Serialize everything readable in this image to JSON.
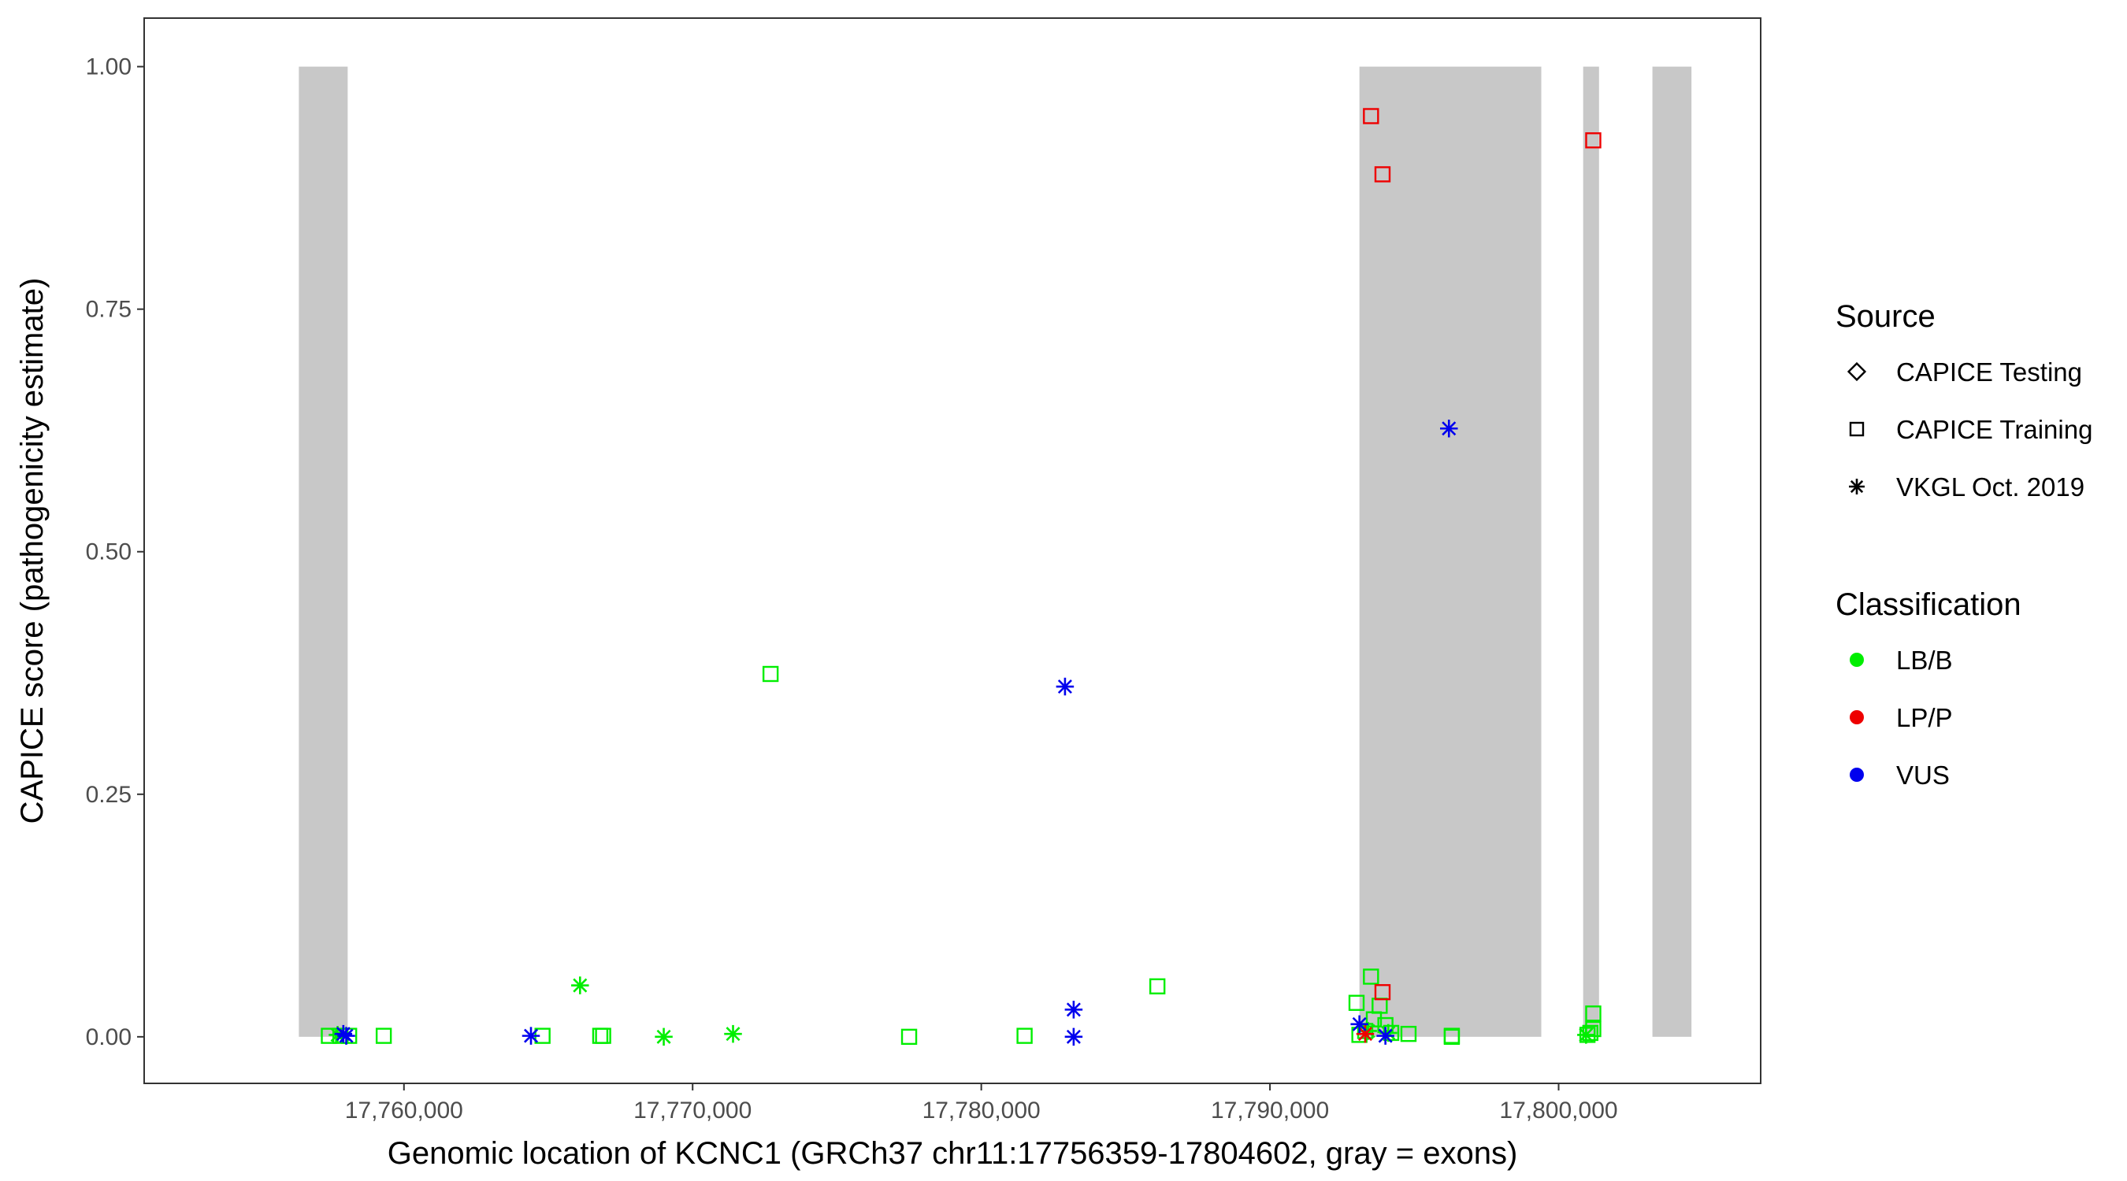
{
  "chart_data": {
    "type": "scatter",
    "title": "",
    "xlabel": "Genomic location of KCNC1 (GRCh37 chr11:17756359-17804602, gray = exons)",
    "ylabel": "CAPICE score (pathogenicity estimate)",
    "xlim": [
      17751000,
      17807000
    ],
    "ylim": [
      -0.048,
      1.05
    ],
    "x_ticks": [
      17760000,
      17770000,
      17780000,
      17790000,
      17800000
    ],
    "x_tick_labels": [
      "17,760,000",
      "17,770,000",
      "17,780,000",
      "17,790,000",
      "17,800,000"
    ],
    "y_ticks": [
      0,
      0.25,
      0.5,
      0.75,
      1.0
    ],
    "y_tick_labels": [
      "0.00",
      "0.25",
      "0.50",
      "0.75",
      "1.00"
    ],
    "grid": false,
    "exon_color": "#c8c8c8",
    "exons": [
      {
        "start": 17756359,
        "end": 17758050
      },
      {
        "start": 17793100,
        "end": 17799400
      },
      {
        "start": 17800850,
        "end": 17801400
      },
      {
        "start": 17803250,
        "end": 17804602
      }
    ],
    "colors": {
      "LB/B": "#00ee00",
      "LP/P": "#ee0000",
      "VUS": "#0000ee"
    },
    "points": [
      {
        "x": 17757400,
        "y": 0.001,
        "source": "CAPICE Training",
        "cls": "LB/B"
      },
      {
        "x": 17757800,
        "y": 0.001,
        "source": "CAPICE Training",
        "cls": "LB/B"
      },
      {
        "x": 17758100,
        "y": 0.001,
        "source": "CAPICE Training",
        "cls": "LB/B"
      },
      {
        "x": 17759300,
        "y": 0.001,
        "source": "CAPICE Training",
        "cls": "LB/B"
      },
      {
        "x": 17764800,
        "y": 0.001,
        "source": "CAPICE Training",
        "cls": "LB/B"
      },
      {
        "x": 17766800,
        "y": 0.001,
        "source": "CAPICE Training",
        "cls": "LB/B"
      },
      {
        "x": 17766900,
        "y": 0.001,
        "source": "CAPICE Training",
        "cls": "LB/B"
      },
      {
        "x": 17772700,
        "y": 0.374,
        "source": "CAPICE Training",
        "cls": "LB/B"
      },
      {
        "x": 17777500,
        "y": 0.0,
        "source": "CAPICE Training",
        "cls": "LB/B"
      },
      {
        "x": 17781500,
        "y": 0.001,
        "source": "CAPICE Training",
        "cls": "LB/B"
      },
      {
        "x": 17786100,
        "y": 0.052,
        "source": "CAPICE Training",
        "cls": "LB/B"
      },
      {
        "x": 17793000,
        "y": 0.035,
        "source": "CAPICE Training",
        "cls": "LB/B"
      },
      {
        "x": 17793500,
        "y": 0.062,
        "source": "CAPICE Training",
        "cls": "LB/B"
      },
      {
        "x": 17793300,
        "y": 0.006,
        "source": "CAPICE Training",
        "cls": "LB/B"
      },
      {
        "x": 17793600,
        "y": 0.018,
        "source": "CAPICE Training",
        "cls": "LB/B"
      },
      {
        "x": 17793800,
        "y": 0.032,
        "source": "CAPICE Training",
        "cls": "LB/B"
      },
      {
        "x": 17794000,
        "y": 0.012,
        "source": "CAPICE Training",
        "cls": "LB/B"
      },
      {
        "x": 17794200,
        "y": 0.004,
        "source": "CAPICE Training",
        "cls": "LB/B"
      },
      {
        "x": 17793100,
        "y": 0.002,
        "source": "CAPICE Training",
        "cls": "LB/B"
      },
      {
        "x": 17794800,
        "y": 0.003,
        "source": "CAPICE Training",
        "cls": "LB/B"
      },
      {
        "x": 17796300,
        "y": 0.001,
        "source": "CAPICE Training",
        "cls": "LB/B"
      },
      {
        "x": 17796300,
        "y": 0.0,
        "source": "CAPICE Training",
        "cls": "LB/B"
      },
      {
        "x": 17801000,
        "y": 0.002,
        "source": "CAPICE Training",
        "cls": "LB/B"
      },
      {
        "x": 17801100,
        "y": 0.004,
        "source": "CAPICE Training",
        "cls": "LB/B"
      },
      {
        "x": 17801200,
        "y": 0.008,
        "source": "CAPICE Training",
        "cls": "LB/B"
      },
      {
        "x": 17801200,
        "y": 0.024,
        "source": "CAPICE Training",
        "cls": "LB/B"
      },
      {
        "x": 17793500,
        "y": 0.949,
        "source": "CAPICE Training",
        "cls": "LP/P"
      },
      {
        "x": 17793900,
        "y": 0.889,
        "source": "CAPICE Training",
        "cls": "LP/P"
      },
      {
        "x": 17801200,
        "y": 0.924,
        "source": "CAPICE Training",
        "cls": "LP/P"
      },
      {
        "x": 17793900,
        "y": 0.046,
        "source": "CAPICE Training",
        "cls": "LP/P"
      },
      {
        "x": 17757700,
        "y": 0.002,
        "source": "VKGL Oct. 2019",
        "cls": "LB/B"
      },
      {
        "x": 17766100,
        "y": 0.053,
        "source": "VKGL Oct. 2019",
        "cls": "LB/B"
      },
      {
        "x": 17769000,
        "y": 0.0,
        "source": "VKGL Oct. 2019",
        "cls": "LB/B"
      },
      {
        "x": 17771400,
        "y": 0.003,
        "source": "VKGL Oct. 2019",
        "cls": "LB/B"
      },
      {
        "x": 17793400,
        "y": 0.006,
        "source": "VKGL Oct. 2019",
        "cls": "LB/B"
      },
      {
        "x": 17794100,
        "y": 0.004,
        "source": "VKGL Oct. 2019",
        "cls": "LB/B"
      },
      {
        "x": 17800950,
        "y": 0.002,
        "source": "VKGL Oct. 2019",
        "cls": "LB/B"
      },
      {
        "x": 17793300,
        "y": 0.003,
        "source": "VKGL Oct. 2019",
        "cls": "LP/P"
      },
      {
        "x": 17757900,
        "y": 0.003,
        "source": "VKGL Oct. 2019",
        "cls": "VUS"
      },
      {
        "x": 17758000,
        "y": 0.001,
        "source": "VKGL Oct. 2019",
        "cls": "VUS"
      },
      {
        "x": 17764400,
        "y": 0.001,
        "source": "VKGL Oct. 2019",
        "cls": "VUS"
      },
      {
        "x": 17782900,
        "y": 0.361,
        "source": "VKGL Oct. 2019",
        "cls": "VUS"
      },
      {
        "x": 17783200,
        "y": 0.028,
        "source": "VKGL Oct. 2019",
        "cls": "VUS"
      },
      {
        "x": 17783200,
        "y": 0.0,
        "source": "VKGL Oct. 2019",
        "cls": "VUS"
      },
      {
        "x": 17796200,
        "y": 0.627,
        "source": "VKGL Oct. 2019",
        "cls": "VUS"
      },
      {
        "x": 17793100,
        "y": 0.013,
        "source": "VKGL Oct. 2019",
        "cls": "VUS"
      },
      {
        "x": 17794000,
        "y": 0.001,
        "source": "VKGL Oct. 2019",
        "cls": "VUS"
      }
    ],
    "legend": {
      "placement": "right",
      "source_title": "Source",
      "source_items": [
        {
          "label": "CAPICE Testing",
          "shape": "diamond"
        },
        {
          "label": "CAPICE Training",
          "shape": "square"
        },
        {
          "label": "VKGL Oct. 2019",
          "shape": "asterisk"
        }
      ],
      "class_title": "Classification",
      "class_items": [
        {
          "label": "LB/B",
          "color": "#00ee00"
        },
        {
          "label": "LP/P",
          "color": "#ee0000"
        },
        {
          "label": "VUS",
          "color": "#0000ee"
        }
      ]
    }
  }
}
